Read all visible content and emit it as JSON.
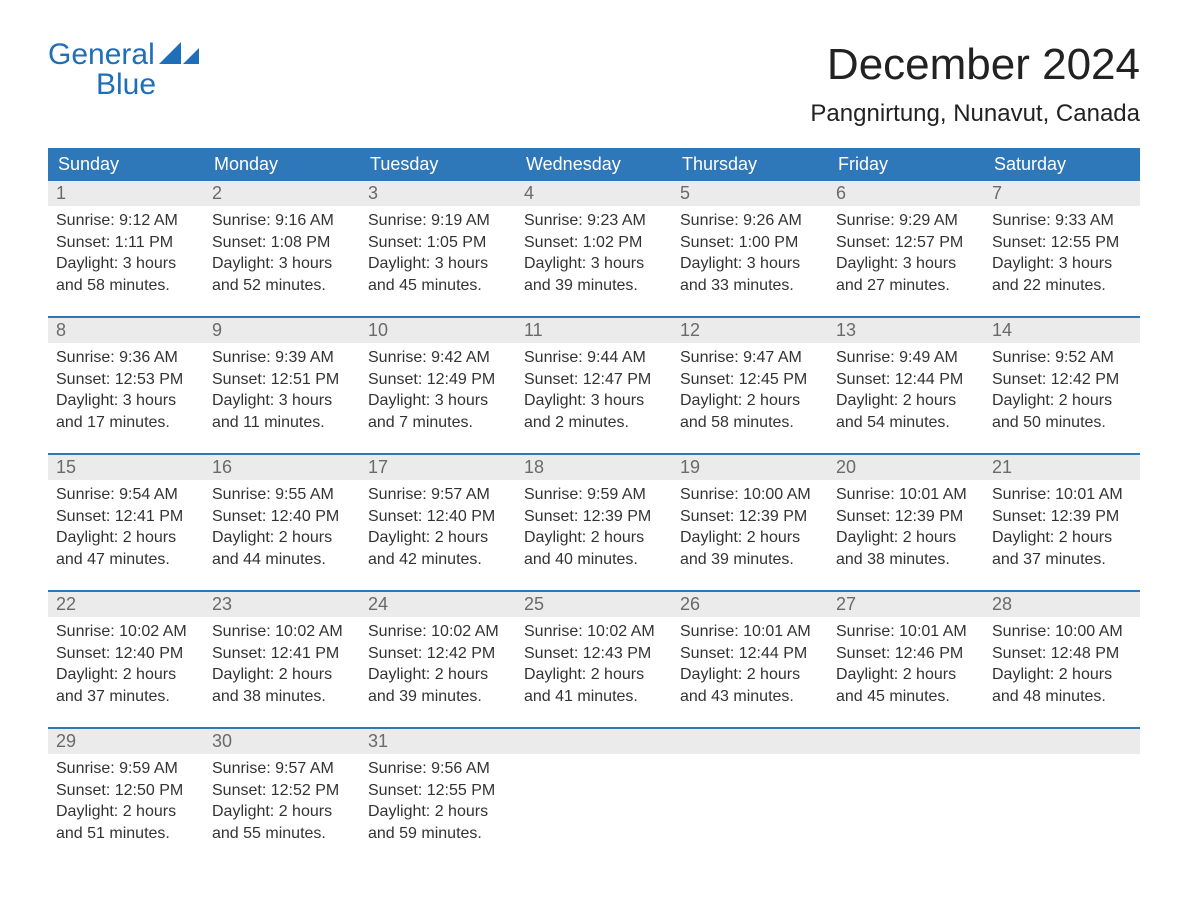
{
  "brand": {
    "line1": "General",
    "line2": "Blue"
  },
  "title": "December 2024",
  "location": "Pangnirtung, Nunavut, Canada",
  "colors": {
    "header_bg": "#2e77b8",
    "header_text": "#ffffff",
    "daynum_bg": "#ebebeb",
    "daynum_text": "#6a6a6a",
    "body_text": "#333333",
    "rule": "#2e77b8",
    "brand": "#1e6fb8"
  },
  "dow": [
    "Sunday",
    "Monday",
    "Tuesday",
    "Wednesday",
    "Thursday",
    "Friday",
    "Saturday"
  ],
  "weeks": [
    [
      {
        "n": "1",
        "l": [
          "Sunrise: 9:12 AM",
          "Sunset: 1:11 PM",
          "Daylight: 3 hours",
          "and 58 minutes."
        ]
      },
      {
        "n": "2",
        "l": [
          "Sunrise: 9:16 AM",
          "Sunset: 1:08 PM",
          "Daylight: 3 hours",
          "and 52 minutes."
        ]
      },
      {
        "n": "3",
        "l": [
          "Sunrise: 9:19 AM",
          "Sunset: 1:05 PM",
          "Daylight: 3 hours",
          "and 45 minutes."
        ]
      },
      {
        "n": "4",
        "l": [
          "Sunrise: 9:23 AM",
          "Sunset: 1:02 PM",
          "Daylight: 3 hours",
          "and 39 minutes."
        ]
      },
      {
        "n": "5",
        "l": [
          "Sunrise: 9:26 AM",
          "Sunset: 1:00 PM",
          "Daylight: 3 hours",
          "and 33 minutes."
        ]
      },
      {
        "n": "6",
        "l": [
          "Sunrise: 9:29 AM",
          "Sunset: 12:57 PM",
          "Daylight: 3 hours",
          "and 27 minutes."
        ]
      },
      {
        "n": "7",
        "l": [
          "Sunrise: 9:33 AM",
          "Sunset: 12:55 PM",
          "Daylight: 3 hours",
          "and 22 minutes."
        ]
      }
    ],
    [
      {
        "n": "8",
        "l": [
          "Sunrise: 9:36 AM",
          "Sunset: 12:53 PM",
          "Daylight: 3 hours",
          "and 17 minutes."
        ]
      },
      {
        "n": "9",
        "l": [
          "Sunrise: 9:39 AM",
          "Sunset: 12:51 PM",
          "Daylight: 3 hours",
          "and 11 minutes."
        ]
      },
      {
        "n": "10",
        "l": [
          "Sunrise: 9:42 AM",
          "Sunset: 12:49 PM",
          "Daylight: 3 hours",
          "and 7 minutes."
        ]
      },
      {
        "n": "11",
        "l": [
          "Sunrise: 9:44 AM",
          "Sunset: 12:47 PM",
          "Daylight: 3 hours",
          "and 2 minutes."
        ]
      },
      {
        "n": "12",
        "l": [
          "Sunrise: 9:47 AM",
          "Sunset: 12:45 PM",
          "Daylight: 2 hours",
          "and 58 minutes."
        ]
      },
      {
        "n": "13",
        "l": [
          "Sunrise: 9:49 AM",
          "Sunset: 12:44 PM",
          "Daylight: 2 hours",
          "and 54 minutes."
        ]
      },
      {
        "n": "14",
        "l": [
          "Sunrise: 9:52 AM",
          "Sunset: 12:42 PM",
          "Daylight: 2 hours",
          "and 50 minutes."
        ]
      }
    ],
    [
      {
        "n": "15",
        "l": [
          "Sunrise: 9:54 AM",
          "Sunset: 12:41 PM",
          "Daylight: 2 hours",
          "and 47 minutes."
        ]
      },
      {
        "n": "16",
        "l": [
          "Sunrise: 9:55 AM",
          "Sunset: 12:40 PM",
          "Daylight: 2 hours",
          "and 44 minutes."
        ]
      },
      {
        "n": "17",
        "l": [
          "Sunrise: 9:57 AM",
          "Sunset: 12:40 PM",
          "Daylight: 2 hours",
          "and 42 minutes."
        ]
      },
      {
        "n": "18",
        "l": [
          "Sunrise: 9:59 AM",
          "Sunset: 12:39 PM",
          "Daylight: 2 hours",
          "and 40 minutes."
        ]
      },
      {
        "n": "19",
        "l": [
          "Sunrise: 10:00 AM",
          "Sunset: 12:39 PM",
          "Daylight: 2 hours",
          "and 39 minutes."
        ]
      },
      {
        "n": "20",
        "l": [
          "Sunrise: 10:01 AM",
          "Sunset: 12:39 PM",
          "Daylight: 2 hours",
          "and 38 minutes."
        ]
      },
      {
        "n": "21",
        "l": [
          "Sunrise: 10:01 AM",
          "Sunset: 12:39 PM",
          "Daylight: 2 hours",
          "and 37 minutes."
        ]
      }
    ],
    [
      {
        "n": "22",
        "l": [
          "Sunrise: 10:02 AM",
          "Sunset: 12:40 PM",
          "Daylight: 2 hours",
          "and 37 minutes."
        ]
      },
      {
        "n": "23",
        "l": [
          "Sunrise: 10:02 AM",
          "Sunset: 12:41 PM",
          "Daylight: 2 hours",
          "and 38 minutes."
        ]
      },
      {
        "n": "24",
        "l": [
          "Sunrise: 10:02 AM",
          "Sunset: 12:42 PM",
          "Daylight: 2 hours",
          "and 39 minutes."
        ]
      },
      {
        "n": "25",
        "l": [
          "Sunrise: 10:02 AM",
          "Sunset: 12:43 PM",
          "Daylight: 2 hours",
          "and 41 minutes."
        ]
      },
      {
        "n": "26",
        "l": [
          "Sunrise: 10:01 AM",
          "Sunset: 12:44 PM",
          "Daylight: 2 hours",
          "and 43 minutes."
        ]
      },
      {
        "n": "27",
        "l": [
          "Sunrise: 10:01 AM",
          "Sunset: 12:46 PM",
          "Daylight: 2 hours",
          "and 45 minutes."
        ]
      },
      {
        "n": "28",
        "l": [
          "Sunrise: 10:00 AM",
          "Sunset: 12:48 PM",
          "Daylight: 2 hours",
          "and 48 minutes."
        ]
      }
    ],
    [
      {
        "n": "29",
        "l": [
          "Sunrise: 9:59 AM",
          "Sunset: 12:50 PM",
          "Daylight: 2 hours",
          "and 51 minutes."
        ]
      },
      {
        "n": "30",
        "l": [
          "Sunrise: 9:57 AM",
          "Sunset: 12:52 PM",
          "Daylight: 2 hours",
          "and 55 minutes."
        ]
      },
      {
        "n": "31",
        "l": [
          "Sunrise: 9:56 AM",
          "Sunset: 12:55 PM",
          "Daylight: 2 hours",
          "and 59 minutes."
        ]
      },
      {
        "n": "",
        "l": []
      },
      {
        "n": "",
        "l": []
      },
      {
        "n": "",
        "l": []
      },
      {
        "n": "",
        "l": []
      }
    ]
  ]
}
